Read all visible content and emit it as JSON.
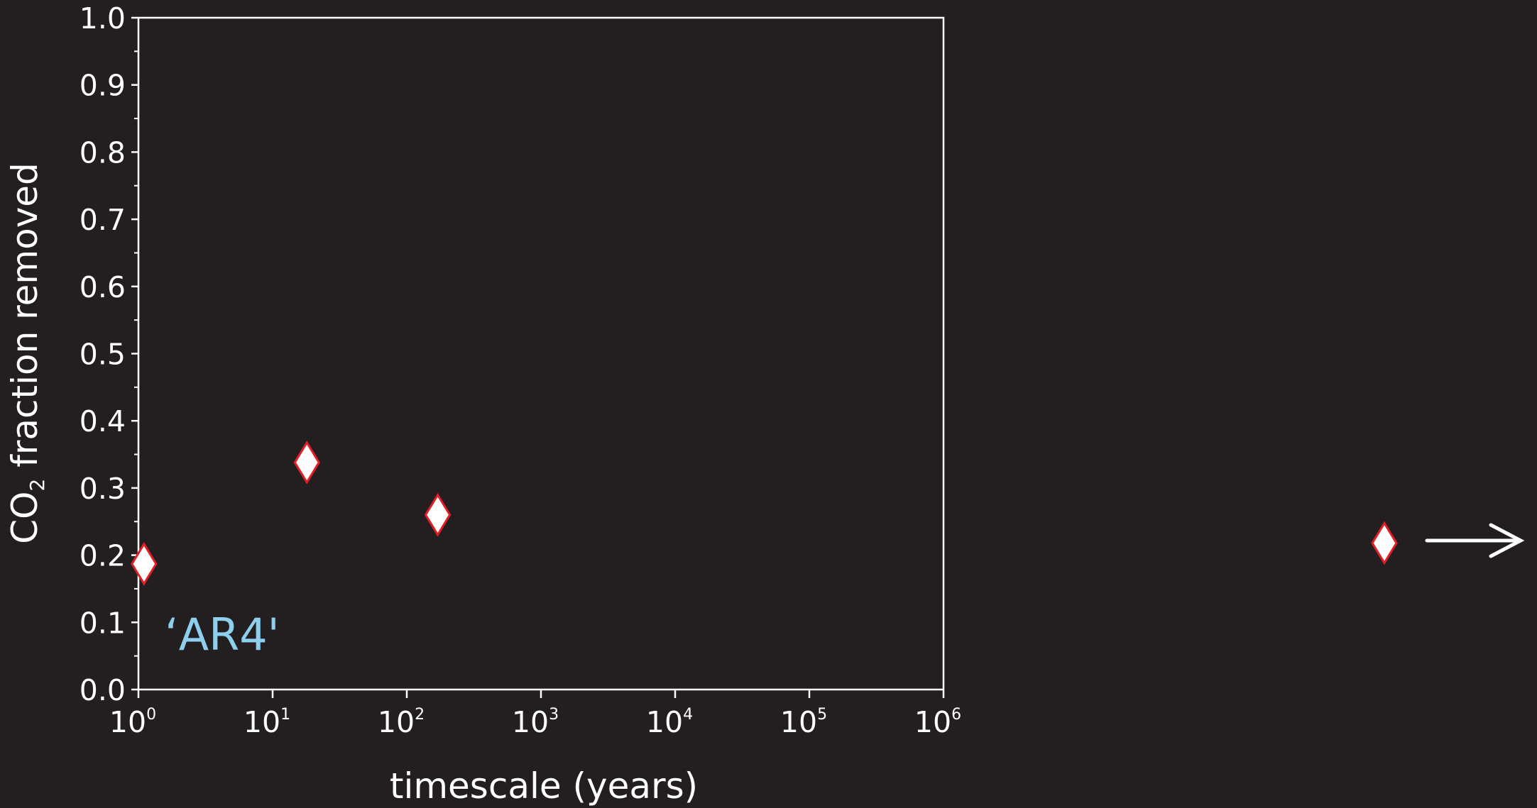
{
  "chart_data": {
    "type": "scatter",
    "title": "",
    "xlabel": "timescale (years)",
    "ylabel": {
      "prefix": "CO",
      "subscript": "2",
      "suffix": " fraction removed"
    },
    "x_scale": "log",
    "xlim": [
      1,
      1000000
    ],
    "ylim": [
      0.0,
      1.0
    ],
    "x_ticks": [
      {
        "base": "10",
        "exp": "0",
        "value": 1
      },
      {
        "base": "10",
        "exp": "1",
        "value": 10
      },
      {
        "base": "10",
        "exp": "2",
        "value": 100
      },
      {
        "base": "10",
        "exp": "3",
        "value": 1000
      },
      {
        "base": "10",
        "exp": "4",
        "value": 10000
      },
      {
        "base": "10",
        "exp": "5",
        "value": 100000
      },
      {
        "base": "10",
        "exp": "6",
        "value": 1000000
      }
    ],
    "y_ticks": [
      "0.0",
      "0.1",
      "0.2",
      "0.3",
      "0.4",
      "0.5",
      "0.6",
      "0.7",
      "0.8",
      "0.9",
      "1.0"
    ],
    "grid": false,
    "marker": "diamond",
    "marker_fill": "#ffffff",
    "marker_edge": "#e31e24",
    "points": [
      {
        "x": 1.1,
        "y": 0.187
      },
      {
        "x": 18,
        "y": 0.338
      },
      {
        "x": 170,
        "y": 0.26
      }
    ],
    "offscale_point": {
      "y": 0.218,
      "direction": "beyond-right"
    },
    "annotation": "‘AR4'",
    "annotation_color": "#8ecfee"
  }
}
